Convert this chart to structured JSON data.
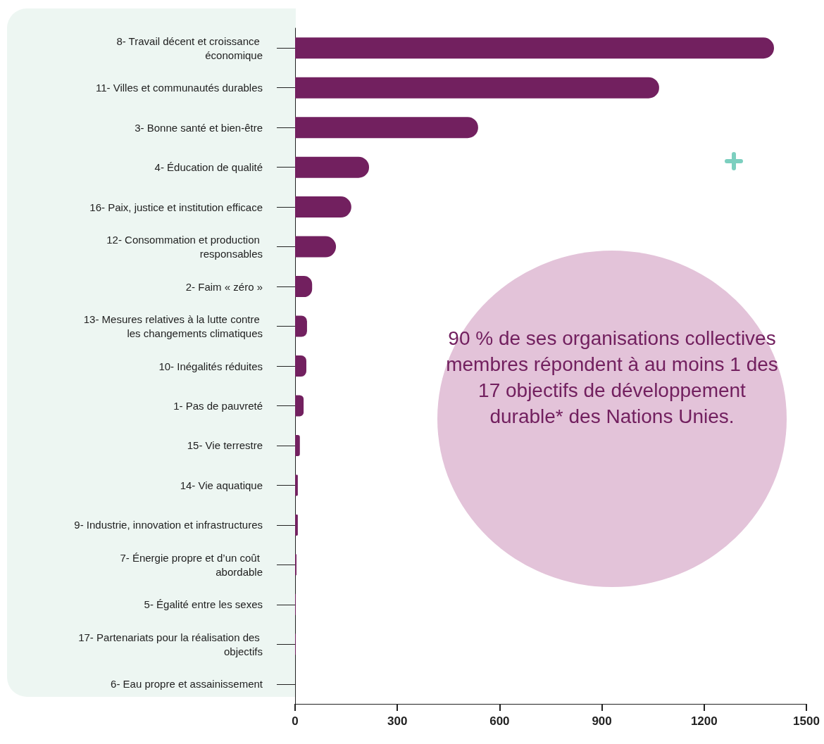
{
  "chart_data": {
    "type": "bar",
    "orientation": "horizontal",
    "categories": [
      "8- Travail décent et croissance économique",
      "11- Villes et communautés durables",
      "3- Bonne santé et bien-être",
      "4- Éducation de qualité",
      "16- Paix, justice et institution efficace",
      "12- Consommation et production responsables",
      "2- Faim « zéro »",
      "13- Mesures relatives à la lutte contre les changements climatiques",
      "10- Inégalités réduites",
      "1- Pas de pauvreté",
      "15- Vie terrestre",
      "14- Vie aquatique",
      "9- Industrie, innovation et infrastructures",
      "7- Énergie propre et d’un coût abordable",
      "5- Égalité entre les sexes",
      "17- Partenariats pour la réalisation des objectifs",
      "6- Eau propre et assainissement"
    ],
    "values": [
      1405,
      1068,
      537,
      217,
      165,
      120,
      50,
      35,
      33,
      25,
      14,
      8,
      8,
      4,
      2,
      2,
      0
    ],
    "color": "#72205f",
    "xlim": [
      0,
      1500
    ],
    "xticks": [
      0,
      300,
      600,
      900,
      1200,
      1500
    ],
    "grid": false,
    "annotations": [
      "90 % de ses organisations collectives membres répondent à au moins 1 des 17 objectifs de développement durable* des Nations Unies."
    ]
  }
}
